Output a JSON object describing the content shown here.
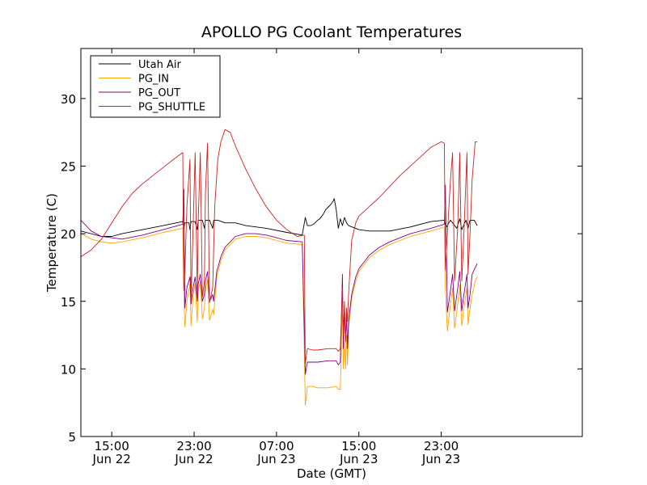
{
  "chart_data": {
    "type": "line",
    "title": "APOLLO PG Coolant Temperatures",
    "xlabel": "Date (GMT)",
    "ylabel": "Temperature (C)",
    "xlim": [
      12,
      60.7
    ],
    "ylim": [
      5,
      33.7
    ],
    "x_units": "hours since Jun 22 00:00 GMT",
    "yticks": [
      5,
      10,
      15,
      20,
      25,
      30
    ],
    "xticks": [
      {
        "x": 15,
        "line1": "15:00",
        "line2": "Jun 22"
      },
      {
        "x": 23,
        "line1": "23:00",
        "line2": "Jun 22"
      },
      {
        "x": 31,
        "line1": "07:00",
        "line2": "Jun 23"
      },
      {
        "x": 39,
        "line1": "15:00",
        "line2": "Jun 23"
      },
      {
        "x": 47,
        "line1": "23:00",
        "line2": "Jun 23"
      }
    ],
    "legend_position": "top-left",
    "series": [
      {
        "name": "Utah Air",
        "color": "#000000",
        "x": [
          12,
          14,
          15,
          16,
          18,
          20,
          21.9,
          22,
          22.1,
          22.5,
          22.6,
          22.7,
          23.1,
          23.3,
          23.4,
          23.8,
          24.0,
          24.1,
          24.5,
          24.8,
          24.9,
          25.3,
          26,
          27,
          28,
          30,
          32,
          33.5,
          33.8,
          34.0,
          34.3,
          34.6,
          35.0,
          35.2,
          35.5,
          35.8,
          36.2,
          36.5,
          36.6,
          36.8,
          37.0,
          37.2,
          37.4,
          37.6,
          37.8,
          38,
          39,
          40,
          42,
          44,
          46,
          47.3,
          47.5,
          47.9,
          48.1,
          48.5,
          48.8,
          49.0,
          49.4,
          49.6,
          49.8,
          50.2,
          50.5
        ],
        "y": [
          20.2,
          19.8,
          19.8,
          20.0,
          20.3,
          20.6,
          20.9,
          20.4,
          20.8,
          20.8,
          20.3,
          20.9,
          20.9,
          20.3,
          21.0,
          21.0,
          20.4,
          21.0,
          21.0,
          20.4,
          21.0,
          21.0,
          20.8,
          20.8,
          20.6,
          20.4,
          20.1,
          19.9,
          21.2,
          20.6,
          20.6,
          20.7,
          21.0,
          21.1,
          21.4,
          21.8,
          22.1,
          22.4,
          22.6,
          21.8,
          20.4,
          21.1,
          20.6,
          21.2,
          20.8,
          20.6,
          20.3,
          20.2,
          20.2,
          20.5,
          20.9,
          21.0,
          20.5,
          21.0,
          20.8,
          20.4,
          21.1,
          20.3,
          21.0,
          20.4,
          21.0,
          21.0,
          20.6
        ]
      },
      {
        "name": "PG_IN",
        "color": "#ffa500",
        "x": [
          12,
          13,
          14,
          15,
          16,
          18,
          20,
          21.9,
          22.0,
          22.1,
          22.3,
          22.6,
          22.7,
          22.9,
          23.1,
          23.3,
          23.4,
          23.6,
          23.8,
          24.0,
          24.1,
          24.3,
          24.5,
          24.8,
          24.9,
          25.2,
          25.6,
          26,
          27,
          28,
          29,
          30,
          31,
          32,
          33.5,
          33.75,
          33.8,
          34.0,
          34.5,
          35,
          36,
          36.8,
          37.0,
          37.2,
          37.4,
          37.5,
          37.6,
          37.7,
          37.8,
          37.9,
          38.0,
          38.3,
          38.7,
          39,
          40,
          41,
          42,
          44,
          46,
          47.3,
          47.4,
          47.6,
          47.9,
          48.1,
          48.3,
          48.6,
          48.8,
          49.0,
          49.2,
          49.5,
          49.6,
          49.8,
          50.0,
          50.3,
          50.5
        ],
        "y": [
          20.0,
          19.6,
          19.4,
          19.3,
          19.4,
          19.7,
          20.1,
          20.4,
          15.5,
          13.1,
          15.0,
          16.3,
          13.2,
          15.4,
          16.3,
          13.5,
          15.7,
          16.5,
          13.7,
          14.5,
          15.8,
          16.6,
          13.6,
          14.4,
          14.0,
          16.8,
          18.0,
          18.8,
          19.6,
          19.8,
          19.8,
          19.7,
          19.5,
          19.3,
          19.2,
          9.3,
          7.3,
          8.7,
          8.7,
          8.6,
          8.6,
          8.7,
          8.5,
          8.5,
          15.0,
          10.0,
          12.0,
          10.0,
          12.5,
          10.3,
          13.0,
          15.2,
          16.5,
          17.2,
          18.2,
          18.8,
          19.2,
          19.8,
          20.2,
          20.5,
          16.0,
          12.8,
          14.8,
          16.0,
          13.0,
          14.8,
          16.2,
          13.2,
          14.5,
          16.0,
          13.3,
          14.5,
          15.5,
          16.5,
          16.8
        ]
      },
      {
        "name": "PG_OUT",
        "color": "#800080",
        "x": [
          12,
          13,
          14,
          15,
          16,
          18,
          20,
          21.9,
          22.0,
          22.1,
          22.3,
          22.6,
          22.7,
          22.9,
          23.1,
          23.3,
          23.4,
          23.6,
          23.8,
          24.0,
          24.1,
          24.3,
          24.5,
          24.8,
          24.9,
          25.2,
          25.6,
          26,
          27,
          28,
          29,
          30,
          31,
          32,
          33.5,
          33.75,
          33.8,
          34.0,
          34.5,
          35,
          36,
          36.8,
          37.0,
          37.2,
          37.4,
          37.5,
          37.6,
          37.7,
          37.8,
          37.9,
          38.0,
          38.3,
          38.7,
          39,
          40,
          41,
          42,
          44,
          46,
          47.3,
          47.4,
          47.6,
          47.9,
          48.1,
          48.3,
          48.6,
          48.8,
          49.0,
          49.2,
          49.5,
          49.6,
          49.8,
          50.0,
          50.3,
          50.5
        ],
        "y": [
          21.0,
          20.2,
          19.8,
          19.7,
          19.6,
          19.9,
          20.3,
          20.7,
          23.3,
          14.5,
          16.0,
          16.8,
          14.8,
          16.0,
          16.8,
          15.0,
          16.3,
          17.0,
          15.0,
          15.5,
          16.5,
          17.2,
          15.0,
          15.5,
          15.0,
          17.2,
          18.3,
          19.0,
          19.8,
          20.0,
          20.0,
          19.9,
          19.7,
          19.5,
          19.4,
          11.5,
          9.6,
          10.5,
          10.5,
          10.5,
          10.6,
          10.6,
          10.3,
          10.5,
          17.0,
          11.5,
          14.5,
          12.0,
          14.0,
          11.5,
          13.5,
          15.5,
          16.8,
          17.4,
          18.4,
          19.0,
          19.4,
          20.0,
          20.4,
          20.7,
          23.6,
          14.2,
          15.8,
          17.0,
          14.3,
          16.0,
          17.2,
          14.3,
          15.5,
          17.0,
          14.5,
          15.5,
          17.0,
          17.5,
          17.8
        ]
      },
      {
        "name": "PG_SHUTTLE",
        "color": "#cc2222",
        "x": [
          12,
          13,
          14,
          15,
          16,
          17,
          18,
          19,
          20,
          21,
          21.9,
          22.0,
          22.1,
          22.3,
          22.6,
          22.7,
          22.9,
          23.1,
          23.3,
          23.4,
          23.6,
          23.8,
          24.0,
          24.1,
          24.3,
          24.5,
          24.8,
          25.0,
          25.3,
          25.6,
          26.0,
          26.5,
          27,
          28,
          29,
          30,
          31,
          32,
          33,
          33.7,
          33.75,
          33.8,
          34.0,
          34.5,
          35,
          36,
          36.8,
          37.0,
          37.2,
          37.4,
          37.5,
          37.6,
          37.7,
          37.8,
          37.9,
          38.0,
          38.3,
          38.7,
          39,
          40,
          41,
          42,
          43,
          44,
          45,
          46,
          47,
          47.3,
          47.4,
          47.6,
          47.9,
          48.1,
          48.3,
          48.6,
          48.8,
          49.0,
          49.2,
          49.5,
          49.6,
          49.8,
          50.0,
          50.3,
          50.5
        ],
        "y": [
          18.3,
          18.8,
          19.6,
          20.8,
          22.0,
          23.0,
          23.7,
          24.3,
          24.9,
          25.5,
          26.0,
          15.8,
          17.2,
          22.0,
          25.5,
          15.0,
          20.5,
          26.0,
          15.5,
          21.0,
          26.0,
          15.3,
          16.5,
          23.0,
          26.7,
          14.9,
          16.0,
          22.0,
          25.5,
          26.8,
          27.7,
          27.5,
          26.5,
          24.8,
          23.3,
          22.0,
          21.0,
          20.3,
          19.8,
          19.9,
          14.5,
          10.4,
          11.5,
          11.4,
          11.4,
          11.5,
          11.5,
          11.3,
          11.5,
          16.0,
          12.5,
          15.0,
          12.0,
          14.5,
          13.5,
          15.5,
          19.5,
          20.8,
          21.3,
          22.0,
          22.7,
          23.5,
          24.3,
          25.0,
          25.7,
          26.4,
          26.8,
          26.7,
          17.3,
          20.0,
          24.0,
          26.0,
          16.5,
          20.5,
          26.0,
          16.5,
          20.0,
          26.0,
          17.0,
          20.0,
          24.0,
          26.8,
          26.8
        ]
      }
    ]
  }
}
